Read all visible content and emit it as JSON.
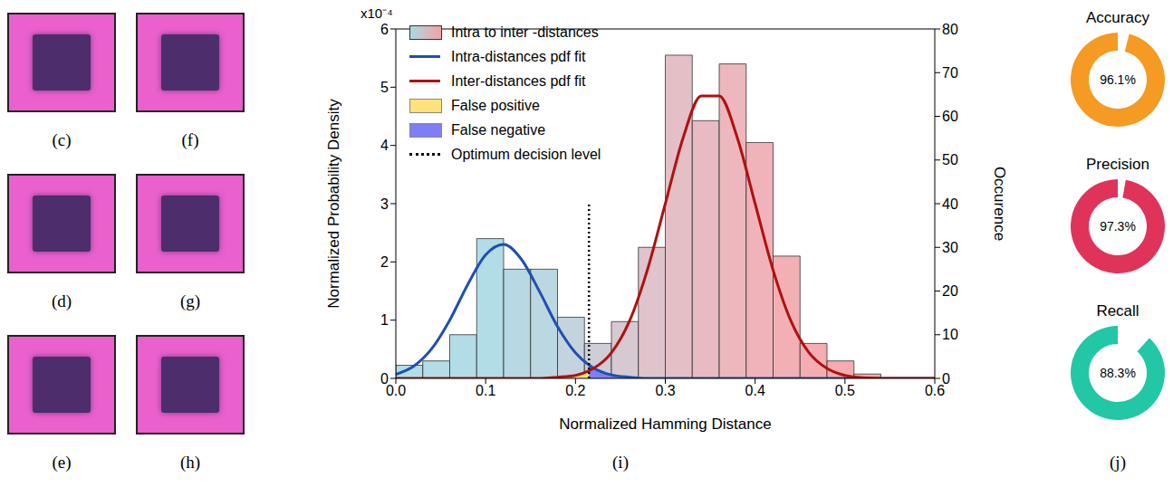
{
  "image_panels": {
    "labels": [
      "(c)",
      "(d)",
      "(e)",
      "(f)",
      "(g)",
      "(h)"
    ]
  },
  "chart_data": [
    {
      "type": "histogram",
      "panel": "(i)",
      "x_label": "Normalized Hamming Distance",
      "y_label": "Normalized Probability Density",
      "y2_label": "Occurence",
      "y_multiplier": "x10⁻⁴",
      "xlim": [
        0,
        0.6
      ],
      "xticks": [
        {
          "value": 0,
          "label": "0.0"
        },
        0.1,
        0.2,
        0.3,
        0.4,
        0.5,
        0.6
      ],
      "ylim": [
        0,
        6
      ],
      "yticks": [
        0,
        1,
        2,
        3,
        4,
        5,
        6
      ],
      "y2lim": [
        0,
        80
      ],
      "y2ticks": [
        0,
        10,
        20,
        30,
        40,
        50,
        60,
        70,
        80
      ],
      "legend": "top-left",
      "series": [
        {
          "name": "Intra to inter -distances",
          "type": "histogram",
          "axis": "y2",
          "bins": [
            0,
            0.03,
            0.06,
            0.09,
            0.12,
            0.15,
            0.18,
            0.21,
            0.24,
            0.27,
            0.3,
            0.33,
            0.36,
            0.39,
            0.42,
            0.45,
            0.48,
            0.51,
            0.54
          ],
          "values": [
            3,
            4,
            10,
            32,
            25,
            25,
            14,
            8,
            13,
            30,
            74,
            59,
            72,
            54,
            28,
            8,
            4,
            1
          ],
          "colors": [
            "#aad9e4",
            "#aad9e4",
            "#aad9e4",
            "#aad9e4",
            "#b0d5e0",
            "#b4d3de",
            "#bccfda",
            "#c8c9d3",
            "#d3c3cc",
            "#dbbec6",
            "#e1b9c0",
            "#e6b4bb",
            "#eaafb6",
            "#eeabb1",
            "#f1a7ad",
            "#f3a4a9",
            "#f4a2a7",
            "#f5a1a6"
          ]
        },
        {
          "name": "Intra-distances pdf fit",
          "type": "line",
          "color": "#1f4fb0",
          "x": [
            0,
            0.02,
            0.04,
            0.06,
            0.08,
            0.1,
            0.12,
            0.14,
            0.16,
            0.18,
            0.2,
            0.215,
            0.22,
            0.24,
            0.26,
            0.28,
            0.3,
            0.32,
            0.34,
            0.36,
            0.38,
            0.4,
            0.42,
            0.44,
            0.46,
            0.48,
            0.5,
            0.52,
            0.54,
            0.56,
            0.58,
            0.6
          ],
          "values": [
            0.07,
            0.21,
            0.51,
            1.0,
            1.61,
            2.12,
            2.3,
            2.04,
            1.49,
            0.89,
            0.44,
            0.23,
            0.18,
            0.06,
            0.02,
            0,
            0,
            0,
            0,
            0,
            0,
            0,
            0,
            0,
            0,
            0,
            0,
            0,
            0,
            0,
            0,
            0
          ]
        },
        {
          "name": "Inter-distances pdf fit",
          "type": "line",
          "color": "#b01010",
          "x": [
            0,
            0.02,
            0.04,
            0.06,
            0.08,
            0.1,
            0.12,
            0.14,
            0.16,
            0.18,
            0.2,
            0.215,
            0.22,
            0.24,
            0.26,
            0.28,
            0.3,
            0.32,
            0.34,
            0.36,
            0.38,
            0.4,
            0.42,
            0.44,
            0.46,
            0.48,
            0.5,
            0.52,
            0.54,
            0.56,
            0.58,
            0.6
          ],
          "values": [
            0,
            0,
            0,
            0,
            0,
            0,
            0,
            0,
            0,
            0.02,
            0.05,
            0.13,
            0.17,
            0.44,
            0.98,
            1.86,
            3.0,
            4.14,
            4.85,
            4.85,
            4.14,
            3.0,
            1.86,
            0.98,
            0.44,
            0.17,
            0.05,
            0.01,
            0,
            0,
            0,
            0
          ]
        },
        {
          "name": "False positive",
          "type": "area",
          "color": "#ffe27a",
          "x": [
            0.16,
            0.18,
            0.2,
            0.215
          ],
          "values": [
            0,
            0.02,
            0.05,
            0.13
          ]
        },
        {
          "name": "False negative",
          "type": "area",
          "color": "#7f7ff5",
          "x": [
            0.215,
            0.22,
            0.24,
            0.26,
            0.28
          ],
          "values": [
            0.23,
            0.18,
            0.06,
            0.02,
            0
          ]
        },
        {
          "name": "Optimum decision level",
          "type": "reference_line",
          "line_style": "dotted",
          "color": "#000000",
          "x": [
            0.215,
            0.215
          ],
          "values": [
            0,
            3
          ]
        }
      ]
    },
    {
      "type": "gauge",
      "panel": "(j)",
      "categories": [
        "Accuracy",
        "Precision",
        "Recall"
      ],
      "values": [
        96.1,
        97.3,
        88.3
      ],
      "value_labels": [
        "96.1%",
        "97.3%",
        "88.3%"
      ],
      "colors": [
        "#f59a23",
        "#e0335a",
        "#22c7a5"
      ]
    }
  ]
}
